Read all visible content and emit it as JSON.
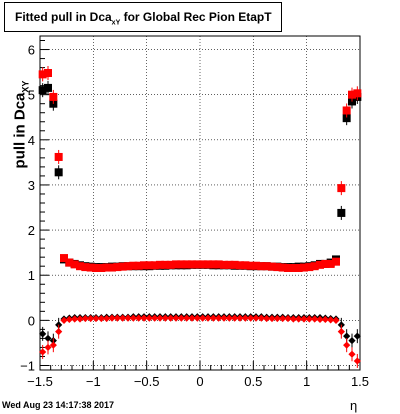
{
  "title": {
    "prefix": "Fitted pull in Dca",
    "sub": "xY",
    "suffix": " for Global Rec Pion EtapT"
  },
  "ylabel": {
    "main": "pull in Dca",
    "sub": "XY"
  },
  "xlabel": "η",
  "footer": "Wed Aug 23 14:17:38 2017",
  "colors": {
    "series_black": "#000000",
    "series_red": "#ff0000",
    "grid": "#000000",
    "background": "#ffffff"
  },
  "chart_data": {
    "type": "scatter",
    "xlim": [
      -1.5,
      1.5
    ],
    "ylim": [
      -1.1,
      6.3
    ],
    "xticks": [
      -1.5,
      -1,
      -0.5,
      0,
      0.5,
      1,
      1.5
    ],
    "xtick_labels": [
      "−1.5",
      "−1",
      "−0.5",
      "0",
      "0.5",
      "1",
      "1.5"
    ],
    "yticks": [
      -1,
      0,
      1,
      2,
      3,
      4,
      5,
      6
    ],
    "ytick_labels": [
      "−1",
      "0",
      "1",
      "2",
      "3",
      "4",
      "5",
      "6"
    ],
    "grid": true,
    "series": [
      {
        "color": "black",
        "x": [
          -1.475,
          -1.425,
          -1.375,
          -1.325,
          -1.275,
          -1.225,
          -1.175,
          -1.125,
          -1.075,
          -1.025,
          -0.975,
          -0.925,
          -0.875,
          -0.825,
          -0.775,
          -0.725,
          -0.675,
          -0.625,
          -0.575,
          -0.525,
          -0.475,
          -0.425,
          -0.375,
          -0.325,
          -0.275,
          -0.225,
          -0.175,
          -0.125,
          -0.075,
          -0.025,
          0.025,
          0.075,
          0.125,
          0.175,
          0.225,
          0.275,
          0.325,
          0.375,
          0.425,
          0.475,
          0.525,
          0.575,
          0.625,
          0.675,
          0.725,
          0.775,
          0.825,
          0.875,
          0.925,
          0.975,
          1.025,
          1.075,
          1.125,
          1.175,
          1.225,
          1.275,
          1.325,
          1.375,
          1.425,
          1.475
        ],
        "y": [
          5.1,
          5.15,
          4.8,
          3.28,
          1.35,
          1.28,
          1.25,
          1.22,
          1.2,
          1.19,
          1.18,
          1.18,
          1.18,
          1.19,
          1.19,
          1.2,
          1.2,
          1.2,
          1.2,
          1.2,
          1.2,
          1.21,
          1.21,
          1.21,
          1.22,
          1.22,
          1.22,
          1.22,
          1.23,
          1.23,
          1.23,
          1.23,
          1.22,
          1.22,
          1.22,
          1.22,
          1.21,
          1.21,
          1.21,
          1.2,
          1.2,
          1.2,
          1.2,
          1.19,
          1.19,
          1.18,
          1.18,
          1.18,
          1.19,
          1.19,
          1.2,
          1.22,
          1.25,
          1.25,
          1.28,
          1.35,
          2.38,
          4.48,
          4.85,
          4.95
        ],
        "y2": [
          -0.3,
          -0.4,
          -0.45,
          -0.1,
          0.03,
          0.05,
          0.06,
          0.06,
          0.06,
          0.06,
          0.06,
          0.06,
          0.07,
          0.07,
          0.07,
          0.07,
          0.07,
          0.08,
          0.08,
          0.08,
          0.08,
          0.08,
          0.08,
          0.08,
          0.08,
          0.08,
          0.08,
          0.08,
          0.08,
          0.08,
          0.08,
          0.08,
          0.08,
          0.08,
          0.08,
          0.08,
          0.08,
          0.08,
          0.08,
          0.08,
          0.08,
          0.08,
          0.07,
          0.07,
          0.07,
          0.07,
          0.06,
          0.06,
          0.06,
          0.06,
          0.06,
          0.06,
          0.06,
          0.05,
          0.04,
          0.03,
          -0.1,
          -0.35,
          -0.45,
          -0.35
        ]
      },
      {
        "color": "red",
        "x": [
          -1.475,
          -1.425,
          -1.375,
          -1.325,
          -1.275,
          -1.225,
          -1.175,
          -1.125,
          -1.075,
          -1.025,
          -0.975,
          -0.925,
          -0.875,
          -0.825,
          -0.775,
          -0.725,
          -0.675,
          -0.625,
          -0.575,
          -0.525,
          -0.475,
          -0.425,
          -0.375,
          -0.325,
          -0.275,
          -0.225,
          -0.175,
          -0.125,
          -0.075,
          -0.025,
          0.025,
          0.075,
          0.125,
          0.175,
          0.225,
          0.275,
          0.325,
          0.375,
          0.425,
          0.475,
          0.525,
          0.575,
          0.625,
          0.675,
          0.725,
          0.775,
          0.825,
          0.875,
          0.925,
          0.975,
          1.025,
          1.075,
          1.125,
          1.175,
          1.225,
          1.275,
          1.325,
          1.375,
          1.425,
          1.475
        ],
        "y": [
          5.45,
          5.48,
          4.95,
          3.62,
          1.38,
          1.28,
          1.24,
          1.2,
          1.18,
          1.17,
          1.16,
          1.16,
          1.17,
          1.17,
          1.18,
          1.19,
          1.2,
          1.21,
          1.21,
          1.22,
          1.22,
          1.22,
          1.23,
          1.23,
          1.23,
          1.24,
          1.24,
          1.24,
          1.24,
          1.24,
          1.24,
          1.24,
          1.24,
          1.24,
          1.23,
          1.23,
          1.23,
          1.22,
          1.22,
          1.21,
          1.21,
          1.2,
          1.2,
          1.19,
          1.18,
          1.17,
          1.16,
          1.16,
          1.16,
          1.17,
          1.18,
          1.2,
          1.23,
          1.25,
          1.25,
          1.3,
          2.93,
          4.65,
          5.0,
          5.03
        ],
        "y2": [
          -0.7,
          -0.6,
          -0.55,
          -0.25,
          0.0,
          0.02,
          0.03,
          0.03,
          0.04,
          0.04,
          0.04,
          0.04,
          0.04,
          0.05,
          0.05,
          0.05,
          0.05,
          0.05,
          0.05,
          0.05,
          0.05,
          0.05,
          0.05,
          0.05,
          0.05,
          0.05,
          0.05,
          0.05,
          0.05,
          0.05,
          0.05,
          0.05,
          0.05,
          0.05,
          0.05,
          0.05,
          0.05,
          0.05,
          0.05,
          0.05,
          0.05,
          0.05,
          0.04,
          0.04,
          0.04,
          0.04,
          0.04,
          0.03,
          0.03,
          0.03,
          0.03,
          0.03,
          0.02,
          0.02,
          0.01,
          0.0,
          -0.25,
          -0.55,
          -0.75,
          -0.9
        ]
      }
    ]
  }
}
